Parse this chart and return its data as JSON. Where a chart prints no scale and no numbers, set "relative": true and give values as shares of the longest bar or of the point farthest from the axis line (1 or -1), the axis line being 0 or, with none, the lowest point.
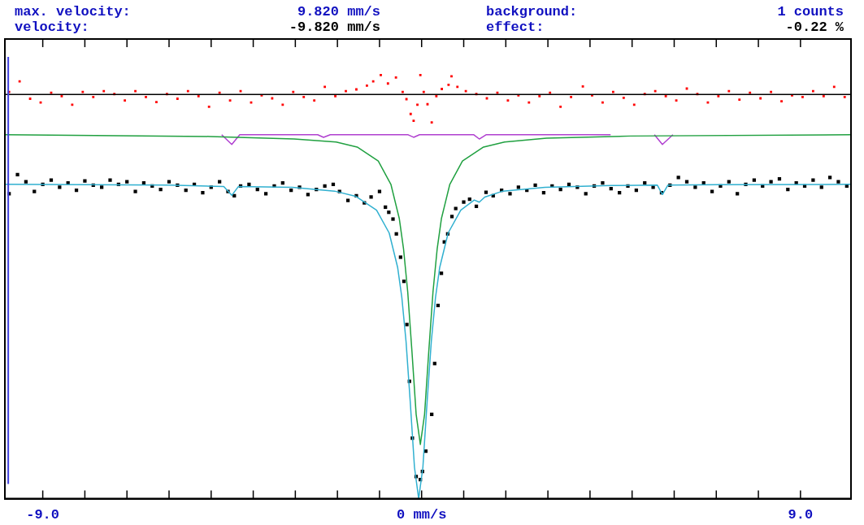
{
  "chart_data": {
    "type": "line",
    "relative": true,
    "annotations": [
      "max. velocity:",
      "9.820 mm/s",
      "background:",
      "1 counts",
      "velocity:",
      "-9.820 mm/s",
      "effect:",
      "-0.22 %"
    ],
    "xlim": [
      -9.9,
      10.2
    ],
    "xticks": [
      {
        "value": -9,
        "label": "-9.0"
      },
      {
        "value": -8,
        "label": null
      },
      {
        "value": -7,
        "label": null
      },
      {
        "value": -6,
        "label": null
      },
      {
        "value": -5,
        "label": null
      },
      {
        "value": -4,
        "label": null
      },
      {
        "value": -3,
        "label": null
      },
      {
        "value": -2,
        "label": null
      },
      {
        "value": -1,
        "label": null
      },
      {
        "value": 0,
        "label": "0 mm/s"
      },
      {
        "value": 1,
        "label": null
      },
      {
        "value": 2,
        "label": null
      },
      {
        "value": 3,
        "label": null
      },
      {
        "value": 4,
        "label": null
      },
      {
        "value": 5,
        "label": null
      },
      {
        "value": 6,
        "label": null
      },
      {
        "value": 7,
        "label": null
      },
      {
        "value": 8,
        "label": null
      },
      {
        "value": 9,
        "label": "9.0"
      }
    ],
    "tick_labels": "x",
    "legend": false,
    "grid": false,
    "ref_lines": [
      {
        "axis": "y",
        "value": 0.954,
        "color": "#000000"
      },
      {
        "axis": "x",
        "value": -9.82,
        "color": "#4040e0"
      }
    ],
    "series": [
      {
        "type": "scatter",
        "marker": "square",
        "color": "#ff0000",
        "x": [
          -9.8,
          -9.55,
          -9.3,
          -9.05,
          -8.8,
          -8.55,
          -8.3,
          -8.05,
          -7.8,
          -7.55,
          -7.3,
          -7.05,
          -6.8,
          -6.55,
          -6.3,
          -6.05,
          -5.8,
          -5.55,
          -5.3,
          -5.05,
          -4.8,
          -4.55,
          -4.3,
          -4.05,
          -3.8,
          -3.55,
          -3.3,
          -3.05,
          -2.8,
          -2.55,
          -2.3,
          -2.05,
          -1.8,
          -1.55,
          -1.3,
          -1.15,
          -0.97,
          -0.8,
          -0.61,
          -0.45,
          -0.36,
          -0.26,
          -0.19,
          -0.1,
          -0.03,
          0.05,
          0.14,
          0.24,
          0.35,
          0.48,
          0.64,
          0.71,
          0.85,
          1.05,
          1.3,
          1.55,
          1.8,
          2.05,
          2.3,
          2.55,
          2.8,
          3.05,
          3.3,
          3.55,
          3.83,
          4.05,
          4.3,
          4.55,
          4.8,
          5.05,
          5.3,
          5.55,
          5.8,
          6.05,
          6.3,
          6.55,
          6.8,
          7.05,
          7.3,
          7.55,
          7.8,
          8.05,
          8.3,
          8.55,
          8.8,
          9.05,
          9.3,
          9.55,
          9.8,
          10.05
        ],
        "values": [
          0.96,
          0.985,
          0.944,
          0.935,
          0.958,
          0.95,
          0.93,
          0.96,
          0.948,
          0.962,
          0.955,
          0.94,
          0.962,
          0.948,
          0.936,
          0.955,
          0.944,
          0.962,
          0.95,
          0.925,
          0.958,
          0.94,
          0.962,
          0.935,
          0.952,
          0.945,
          0.93,
          0.96,
          0.948,
          0.94,
          0.972,
          0.95,
          0.962,
          0.966,
          0.975,
          0.985,
          1.0,
          0.98,
          0.994,
          0.96,
          0.943,
          0.908,
          0.892,
          0.93,
          1.0,
          0.96,
          0.931,
          0.888,
          0.95,
          0.967,
          0.977,
          0.997,
          0.972,
          0.962,
          0.955,
          0.945,
          0.958,
          0.94,
          0.952,
          0.935,
          0.95,
          0.958,
          0.925,
          0.948,
          0.973,
          0.952,
          0.935,
          0.96,
          0.946,
          0.93,
          0.955,
          0.962,
          0.95,
          0.94,
          0.968,
          0.955,
          0.935,
          0.95,
          0.962,
          0.942,
          0.958,
          0.945,
          0.96,
          0.938,
          0.952,
          0.948,
          0.962,
          0.95,
          0.972,
          0.948
        ]
      },
      {
        "type": "scatter",
        "marker": "square",
        "color": "#000000",
        "x": [
          -9.8,
          -9.6,
          -9.4,
          -9.2,
          -9.0,
          -8.8,
          -8.6,
          -8.4,
          -8.2,
          -8.0,
          -7.8,
          -7.6,
          -7.4,
          -7.2,
          -7.0,
          -6.8,
          -6.6,
          -6.4,
          -6.2,
          -6.0,
          -5.8,
          -5.6,
          -5.4,
          -5.2,
          -5.0,
          -4.8,
          -4.6,
          -4.45,
          -4.3,
          -4.1,
          -3.9,
          -3.7,
          -3.5,
          -3.3,
          -3.1,
          -2.9,
          -2.7,
          -2.5,
          -2.3,
          -2.1,
          -1.95,
          -1.75,
          -1.55,
          -1.36,
          -1.2,
          -1.0,
          -0.86,
          -0.78,
          -0.68,
          -0.6,
          -0.5,
          -0.42,
          -0.35,
          -0.29,
          -0.22,
          -0.13,
          -0.03,
          0.02,
          0.1,
          0.24,
          0.31,
          0.39,
          0.47,
          0.54,
          0.62,
          0.72,
          0.81,
          1.0,
          1.14,
          1.3,
          1.53,
          1.7,
          1.9,
          2.1,
          2.3,
          2.5,
          2.7,
          2.9,
          3.1,
          3.3,
          3.5,
          3.7,
          3.9,
          4.1,
          4.3,
          4.5,
          4.7,
          4.9,
          5.1,
          5.3,
          5.5,
          5.7,
          5.9,
          6.1,
          6.3,
          6.5,
          6.7,
          6.9,
          7.1,
          7.3,
          7.5,
          7.7,
          7.9,
          8.1,
          8.3,
          8.5,
          8.7,
          8.9,
          9.1,
          9.3,
          9.5,
          9.7,
          9.9,
          10.1
        ],
        "values": [
          0.72,
          0.765,
          0.748,
          0.725,
          0.742,
          0.752,
          0.735,
          0.745,
          0.728,
          0.75,
          0.74,
          0.735,
          0.752,
          0.742,
          0.748,
          0.725,
          0.745,
          0.738,
          0.73,
          0.748,
          0.74,
          0.728,
          0.742,
          0.722,
          0.735,
          0.748,
          0.725,
          0.715,
          0.738,
          0.742,
          0.73,
          0.72,
          0.738,
          0.745,
          0.728,
          0.735,
          0.718,
          0.73,
          0.738,
          0.742,
          0.725,
          0.704,
          0.715,
          0.698,
          0.712,
          0.725,
          0.688,
          0.676,
          0.66,
          0.625,
          0.57,
          0.513,
          0.411,
          0.277,
          0.143,
          0.052,
          0.045,
          0.064,
          0.112,
          0.199,
          0.319,
          0.456,
          0.532,
          0.606,
          0.625,
          0.666,
          0.685,
          0.7,
          0.707,
          0.69,
          0.723,
          0.715,
          0.728,
          0.72,
          0.735,
          0.728,
          0.74,
          0.722,
          0.738,
          0.73,
          0.742,
          0.735,
          0.72,
          0.738,
          0.745,
          0.732,
          0.722,
          0.738,
          0.728,
          0.745,
          0.735,
          0.722,
          0.74,
          0.758,
          0.748,
          0.735,
          0.745,
          0.725,
          0.738,
          0.748,
          0.72,
          0.742,
          0.752,
          0.738,
          0.748,
          0.755,
          0.73,
          0.745,
          0.738,
          0.752,
          0.735,
          0.758,
          0.748,
          0.738
        ]
      },
      {
        "marker": "none",
        "color": "#b040d0",
        "x": [
          -4.75,
          -4.51,
          -4.32,
          -2.47,
          -2.33,
          -2.17,
          -0.32,
          -0.19,
          -0.05,
          1.24,
          1.37,
          1.53,
          4.49,
          5.0,
          5.53,
          5.72,
          5.97
        ],
        "values": [
          0.859,
          0.836,
          0.859,
          0.859,
          0.853,
          0.859,
          0.859,
          0.853,
          0.859,
          0.859,
          0.849,
          0.859,
          0.859,
          null,
          0.859,
          0.836,
          0.859
        ]
      },
      {
        "marker": "none",
        "color": "#20a040",
        "x": [
          -9.9,
          -5.03,
          -3.03,
          -2.03,
          -1.53,
          -1.03,
          -0.73,
          -0.53,
          -0.43,
          -0.33,
          -0.23,
          -0.13,
          -0.03,
          0.07,
          0.17,
          0.27,
          0.37,
          0.47,
          0.67,
          0.97,
          1.47,
          1.97,
          2.97,
          4.97,
          10.2
        ],
        "values": [
          0.859,
          0.855,
          0.849,
          0.842,
          0.83,
          0.797,
          0.742,
          0.661,
          0.59,
          0.488,
          0.348,
          0.199,
          0.128,
          0.199,
          0.348,
          0.488,
          0.59,
          0.661,
          0.742,
          0.797,
          0.83,
          0.842,
          0.851,
          0.856,
          0.859
        ]
      },
      {
        "marker": "none",
        "color": "#30b0d0",
        "x": [
          -9.9,
          -6,
          -4.7,
          -4.51,
          -4.35,
          -3.07,
          -2.07,
          -1.57,
          -1.07,
          -0.77,
          -0.57,
          -0.47,
          -0.37,
          -0.27,
          -0.17,
          -0.07,
          0.03,
          0.13,
          0.23,
          0.33,
          0.43,
          0.63,
          0.93,
          1.25,
          1.37,
          1.5,
          1.93,
          2.93,
          4.5,
          5.6,
          5.72,
          5.85,
          7,
          10.2
        ],
        "values": [
          0.742,
          0.74,
          0.737,
          0.716,
          0.737,
          0.735,
          0.726,
          0.714,
          0.681,
          0.627,
          0.546,
          0.475,
          0.371,
          0.228,
          0.074,
          0,
          0.074,
          0.228,
          0.371,
          0.475,
          0.546,
          0.627,
          0.681,
          0.705,
          0.7,
          0.712,
          0.726,
          0.735,
          0.739,
          0.74,
          0.718,
          0.74,
          0.741,
          0.742
        ]
      }
    ]
  }
}
